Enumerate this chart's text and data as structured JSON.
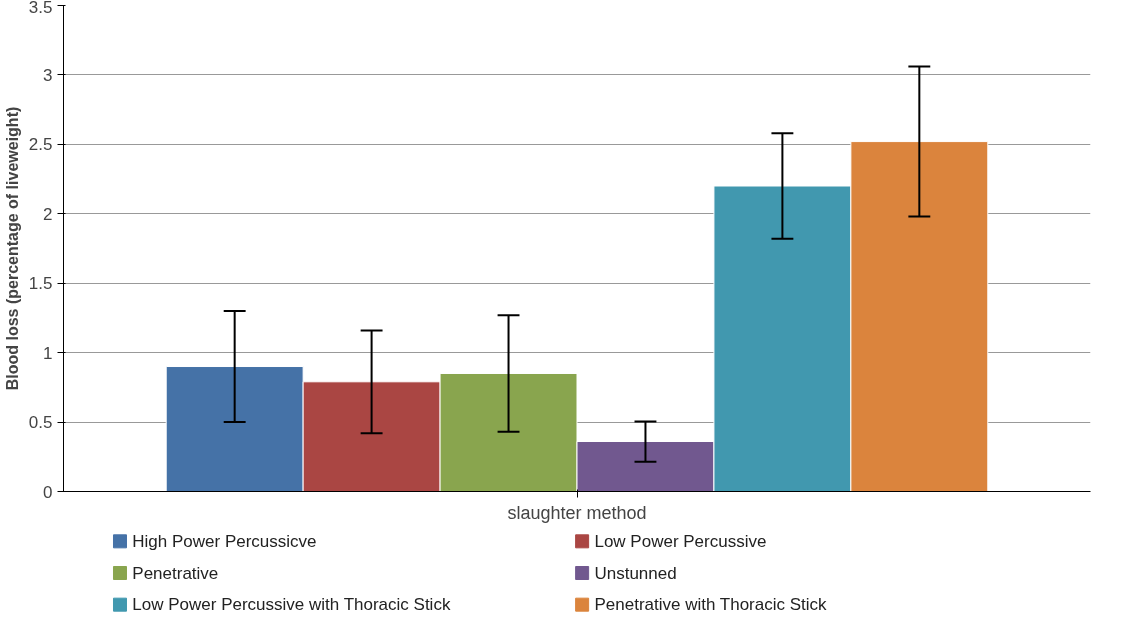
{
  "chart_data": {
    "type": "bar",
    "xlabel": "slaughter method",
    "ylabel": "Blood loss (percentage of liveweight)",
    "categories": [
      null
    ],
    "series": [
      {
        "name": "High Power Percussicve",
        "color": "#4572a7",
        "values": [
          0.9
        ],
        "errors": [
          0.4
        ]
      },
      {
        "name": "Low Power Percussive",
        "color": "#aa4643",
        "values": [
          0.79
        ],
        "errors": [
          0.37
        ]
      },
      {
        "name": "Penetrative",
        "color": "#89a54e",
        "values": [
          0.85
        ],
        "errors": [
          0.42
        ]
      },
      {
        "name": "Unstunned",
        "color": "#71588f",
        "values": [
          0.36
        ],
        "errors": [
          0.145
        ]
      },
      {
        "name": "Low Power Percussive with Thoracic Stick",
        "color": "#4198af",
        "values": [
          2.2
        ],
        "errors": [
          0.38
        ]
      },
      {
        "name": "Penetrative with Thoracic Stick",
        "color": "#db843d",
        "values": [
          2.52
        ],
        "errors": [
          0.54
        ]
      }
    ],
    "ylim": [
      0,
      3.5
    ],
    "yticks": [
      0,
      0.5,
      1,
      1.5,
      2,
      2.5,
      3,
      3.5
    ],
    "grid": "y",
    "legend": "bottom"
  }
}
